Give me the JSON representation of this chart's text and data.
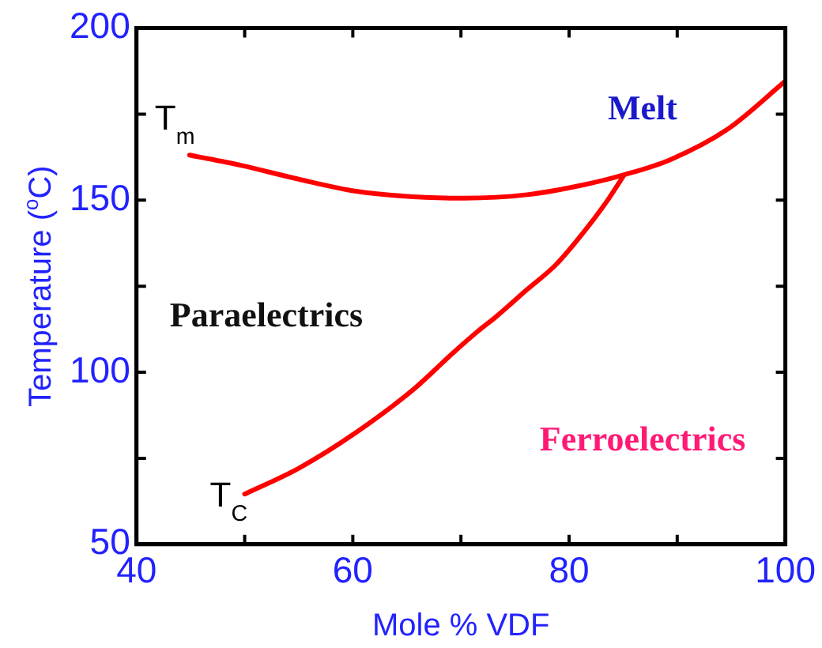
{
  "chart_data": {
    "type": "line",
    "xlabel": "Mole % VDF",
    "ylabel": "Temperature ($^{o}$C)",
    "xlim": [
      40,
      100
    ],
    "xticks": [
      40,
      {
        "value": 50,
        "label": null
      },
      60,
      {
        "value": 70,
        "label": null
      },
      80,
      {
        "value": 90,
        "label": null
      },
      100
    ],
    "ylim": [
      50,
      200
    ],
    "yticks": [
      50,
      {
        "value": 75,
        "label": null
      },
      100,
      {
        "value": 125,
        "label": null
      },
      150,
      {
        "value": 175,
        "label": null
      },
      200
    ],
    "grid": false,
    "legend": false,
    "marker": "none",
    "line_style": "solid",
    "series": [
      {
        "name": "T$_{m}$",
        "color": "#ff0000",
        "x": [
          44.9,
          49.7,
          55,
          60.3,
          65.6,
          70.3,
          76.1,
          81.4,
          85.1,
          89.3,
          94.6,
          100
        ],
        "values": [
          163.1,
          160.1,
          156.1,
          152.6,
          151,
          150.6,
          151.6,
          154.5,
          157.4,
          161.7,
          170.5,
          184.6
        ]
      },
      {
        "name": "T$_{C}$",
        "color": "#ff0000",
        "x": [
          50,
          55,
          60.3,
          65.6,
          69.3,
          71.6,
          73.2,
          76.1,
          78.8,
          81.4,
          83.5,
          85
        ],
        "values": [
          64.6,
          72.1,
          82.5,
          95,
          105.7,
          112,
          116,
          124,
          131.3,
          140.9,
          149.7,
          156.9
        ]
      }
    ],
    "annotations": [
      "Melt",
      "Paraelectrics",
      "Ferroelectrics"
    ]
  }
}
